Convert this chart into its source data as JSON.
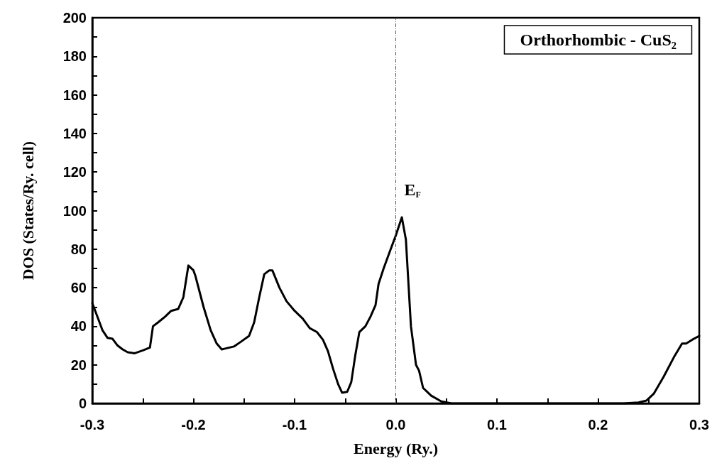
{
  "chart_data": {
    "type": "line",
    "title": "Orthorhombic - CuS₂",
    "xlabel": "Energy (Ry.)",
    "ylabel": "DOS (States/Ry. cell)",
    "x": [
      -0.3,
      -0.295,
      -0.29,
      -0.285,
      -0.28,
      -0.275,
      -0.27,
      -0.265,
      -0.258,
      -0.25,
      -0.243,
      -0.24,
      -0.235,
      -0.228,
      -0.222,
      -0.215,
      -0.21,
      -0.205,
      -0.2,
      -0.198,
      -0.19,
      -0.183,
      -0.177,
      -0.172,
      -0.168,
      -0.16,
      -0.153,
      -0.145,
      -0.14,
      -0.135,
      -0.13,
      -0.125,
      -0.122,
      -0.115,
      -0.108,
      -0.1,
      -0.092,
      -0.085,
      -0.078,
      -0.072,
      -0.067,
      -0.062,
      -0.057,
      -0.053,
      -0.048,
      -0.044,
      -0.04,
      -0.036,
      -0.03,
      -0.025,
      -0.02,
      -0.017,
      -0.012,
      -0.005,
      0,
      0.006,
      0.01,
      0.015,
      0.02,
      0.023,
      0.027,
      0.035,
      0.045,
      0.055,
      0.1,
      0.2,
      0.225,
      0.24,
      0.248,
      0.255,
      0.265,
      0.275,
      0.283,
      0.287,
      0.293,
      0.3
    ],
    "series": [
      {
        "color": "#000000",
        "values": [
          52,
          45,
          38,
          34,
          33.5,
          30,
          28,
          26.5,
          26,
          27.5,
          29,
          40,
          42,
          45,
          48,
          49,
          55,
          71.5,
          69,
          66,
          50,
          38,
          31,
          28,
          28.5,
          29.5,
          32,
          35,
          42,
          55,
          67,
          69,
          69,
          60,
          53,
          48,
          44,
          39,
          37,
          33,
          27,
          18,
          10,
          5.5,
          6,
          11,
          25,
          37,
          40,
          45,
          51,
          62,
          70,
          80,
          87,
          96.5,
          85,
          40,
          20,
          17,
          8,
          4,
          1,
          0,
          0,
          0,
          0,
          0.5,
          1.5,
          5,
          14,
          24,
          31,
          31,
          33,
          35
        ]
      }
    ],
    "xlim": [
      -0.3,
      0.3
    ],
    "xticks": [
      -0.3,
      {
        "value": -0.25,
        "label": null
      },
      -0.2,
      {
        "value": -0.15,
        "label": null
      },
      -0.1,
      {
        "value": -0.05,
        "label": null
      },
      {
        "value": 0,
        "label": "0.0"
      },
      {
        "value": 0.05,
        "label": null
      },
      0.1,
      {
        "value": 0.15,
        "label": null
      },
      0.2,
      {
        "value": 0.25,
        "label": null
      },
      0.3
    ],
    "ylim": [
      0,
      200
    ],
    "yticks": [
      0,
      {
        "value": 10,
        "label": null
      },
      20,
      {
        "value": 30,
        "label": null
      },
      40,
      {
        "value": 50,
        "label": null
      },
      60,
      {
        "value": 70,
        "label": null
      },
      80,
      {
        "value": 90,
        "label": null
      },
      100,
      {
        "value": 110,
        "label": null
      },
      120,
      {
        "value": 130,
        "label": null
      },
      140,
      {
        "value": 150,
        "label": null
      },
      160,
      {
        "value": 170,
        "label": null
      },
      180,
      {
        "value": 190,
        "label": null
      },
      200
    ],
    "ref_lines": [
      {
        "axis": "x",
        "value": 0,
        "label": "E$_{F}$",
        "color": "#555555",
        "line_style": "dashed"
      }
    ],
    "grid": false,
    "marker": "none",
    "line_style": "solid"
  }
}
